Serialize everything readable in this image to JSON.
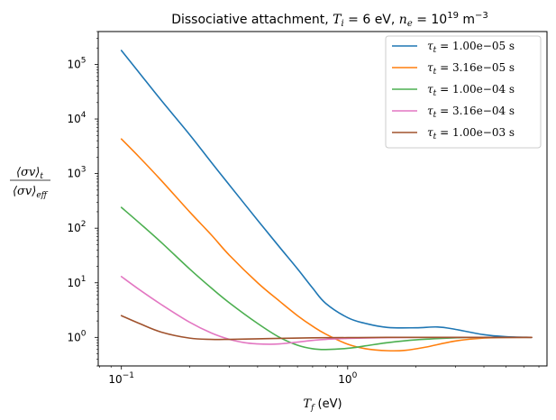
{
  "chart_data": {
    "type": "line",
    "title": "Dissociative attachment, T_i = 6 eV, n_e = 10^19 m^-3",
    "title_parts": {
      "prefix": "Dissociative attachment, ",
      "ti_symbol": "T",
      "ti_sub": "i",
      "ti_value": " = 6 eV, ",
      "ne_symbol": "n",
      "ne_sub": "e",
      "ne_eq": " = 10",
      "ne_exp": "19",
      "units": " m",
      "units_exp": "−3"
    },
    "xlabel": "T_f (eV)",
    "xlabel_parts": {
      "symbol": "T",
      "sub": "f",
      "units": " (eV)"
    },
    "ylabel": "⟨σv⟩_t / ⟨σv⟩_eff",
    "ylabel_parts": {
      "num": "⟨σv⟩",
      "num_sub": "t",
      "den": "⟨σv⟩",
      "den_sub": "eff"
    },
    "xscale": "log",
    "yscale": "log",
    "xlim": [
      0.079,
      7.6
    ],
    "ylim": [
      0.3,
      400000
    ],
    "xticks": [
      {
        "value": 0.1,
        "base": "10",
        "exp": "−1"
      },
      {
        "value": 1,
        "base": "10",
        "exp": "0"
      }
    ],
    "yticks": [
      {
        "value": 1,
        "base": "10",
        "exp": "0"
      },
      {
        "value": 10,
        "base": "10",
        "exp": "1"
      },
      {
        "value": 100,
        "base": "10",
        "exp": "2"
      },
      {
        "value": 1000,
        "base": "10",
        "exp": "3"
      },
      {
        "value": 10000,
        "base": "10",
        "exp": "4"
      },
      {
        "value": 100000,
        "base": "10",
        "exp": "5"
      }
    ],
    "legend_position": "top-right",
    "series": [
      {
        "name": "τ_t = 1.00e−05 s",
        "label_value": "1.00e−05",
        "color": "#1f77b4",
        "x": [
          0.1,
          0.12,
          0.15,
          0.2,
          0.25,
          0.3,
          0.4,
          0.5,
          0.6,
          0.7,
          0.8,
          1.0,
          1.2,
          1.5,
          2.0,
          2.5,
          3.0,
          4.0,
          5.0,
          6.5
        ],
        "y": [
          180000,
          70000,
          22000,
          5200,
          1600,
          620,
          140,
          45,
          18,
          8,
          4.2,
          2.3,
          1.8,
          1.52,
          1.5,
          1.55,
          1.4,
          1.12,
          1.03,
          1.0
        ]
      },
      {
        "name": "τ_t = 3.16e−05 s",
        "label_value": "3.16e−05",
        "color": "#ff7f0e",
        "x": [
          0.1,
          0.12,
          0.15,
          0.2,
          0.25,
          0.3,
          0.4,
          0.5,
          0.6,
          0.7,
          0.8,
          1.0,
          1.2,
          1.5,
          1.8,
          2.2,
          3.0,
          4.0,
          5.0,
          6.5
        ],
        "y": [
          4300,
          2000,
          750,
          200,
          75,
          32,
          10,
          4.6,
          2.5,
          1.6,
          1.15,
          0.75,
          0.62,
          0.57,
          0.58,
          0.66,
          0.86,
          0.97,
          0.99,
          1.0
        ]
      },
      {
        "name": "τ_t = 1.00e−04 s",
        "label_value": "1.00e−04",
        "color": "#4caf50",
        "x": [
          0.1,
          0.12,
          0.15,
          0.2,
          0.25,
          0.3,
          0.4,
          0.5,
          0.6,
          0.7,
          0.8,
          1.0,
          1.2,
          1.5,
          2.0,
          3.0,
          4.0,
          5.0,
          6.5
        ],
        "y": [
          240,
          125,
          55,
          18,
          8,
          4.3,
          1.8,
          1.0,
          0.72,
          0.62,
          0.6,
          0.63,
          0.7,
          0.8,
          0.9,
          0.98,
          1.0,
          1.0,
          1.0
        ]
      },
      {
        "name": "τ_t = 3.16e−04 s",
        "label_value": "3.16e−04",
        "color": "#e377c2",
        "x": [
          0.1,
          0.12,
          0.15,
          0.2,
          0.25,
          0.3,
          0.35,
          0.4,
          0.45,
          0.5,
          0.6,
          0.7,
          0.8,
          1.0,
          1.5,
          2.0,
          3.0,
          5.0,
          6.5
        ],
        "y": [
          13,
          7.5,
          4.0,
          1.9,
          1.2,
          0.92,
          0.8,
          0.76,
          0.75,
          0.76,
          0.82,
          0.88,
          0.92,
          0.96,
          0.99,
          1.0,
          1.0,
          1.0,
          1.0
        ]
      },
      {
        "name": "τ_t = 1.00e−03 s",
        "label_value": "1.00e−03",
        "color": "#a0522d",
        "x": [
          0.1,
          0.12,
          0.15,
          0.2,
          0.25,
          0.3,
          0.4,
          0.5,
          0.7,
          1.0,
          1.5,
          2.0,
          3.0,
          5.0,
          6.5
        ],
        "y": [
          2.5,
          1.8,
          1.25,
          0.97,
          0.92,
          0.92,
          0.94,
          0.96,
          0.98,
          0.99,
          1.0,
          1.0,
          1.0,
          1.0,
          1.0
        ]
      }
    ]
  }
}
